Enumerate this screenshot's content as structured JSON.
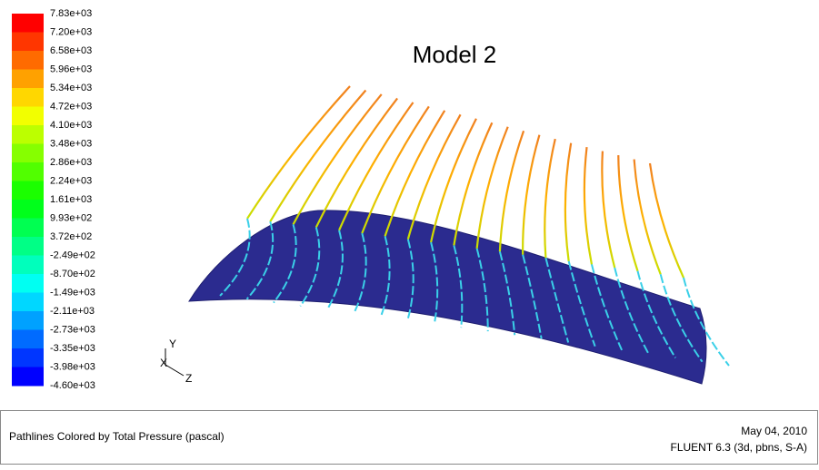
{
  "colorbar": {
    "labels": [
      "7.83e+03",
      "7.20e+03",
      "6.58e+03",
      "5.96e+03",
      "5.34e+03",
      "4.72e+03",
      "4.10e+03",
      "3.48e+03",
      "2.86e+03",
      "2.24e+03",
      "1.61e+03",
      "9.93e+02",
      "3.72e+02",
      "-2.49e+02",
      "-8.70e+02",
      "-1.49e+03",
      "-2.11e+03",
      "-2.73e+03",
      "-3.35e+03",
      "-3.98e+03",
      "-4.60e+03"
    ]
  },
  "view": {
    "title": "Model 2",
    "axes": {
      "y": "Y",
      "x": "X",
      "z": "Z"
    }
  },
  "footer": {
    "caption": "Pathlines Colored by Total Pressure (pascal)",
    "date": "May 04, 2010",
    "solver": "FLUENT 6.3 (3d, pbns, S-A)"
  }
}
